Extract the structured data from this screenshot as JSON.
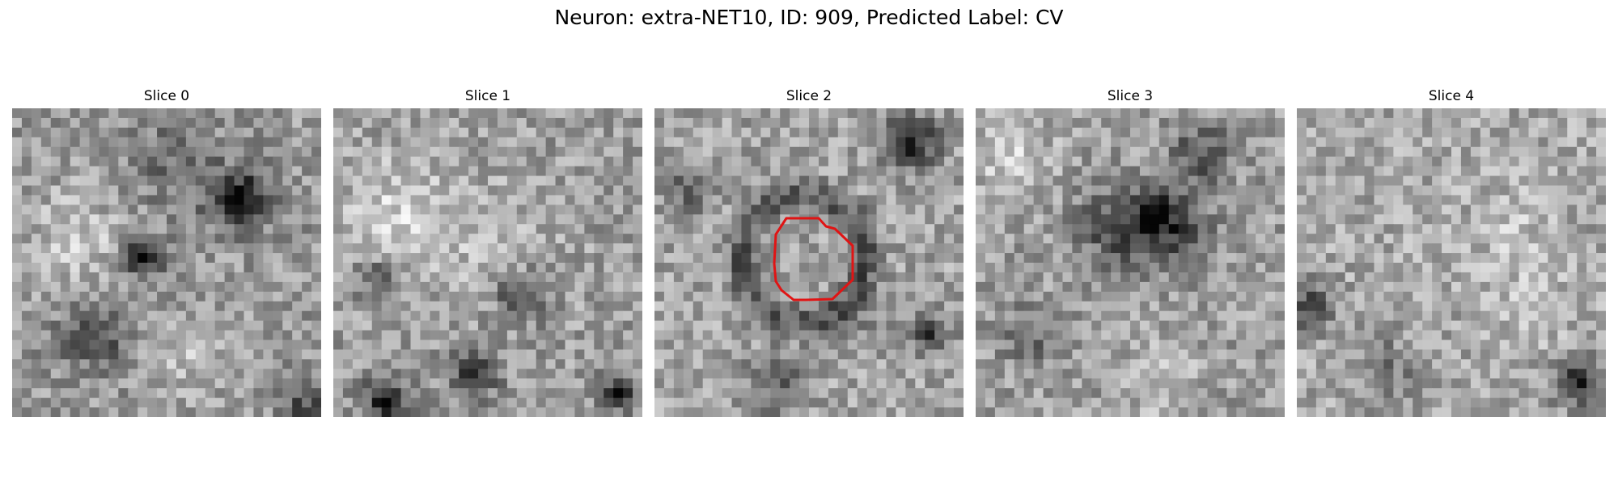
{
  "figure": {
    "title": "Neuron: extra-NET10, ID: 909, Predicted Label: CV"
  },
  "panels": [
    {
      "title": "Slice 0"
    },
    {
      "title": "Slice 1"
    },
    {
      "title": "Slice 2"
    },
    {
      "title": "Slice 3"
    },
    {
      "title": "Slice 4"
    }
  ],
  "colors": {
    "background": "#ffffff",
    "colormap": "gray",
    "contour": "#e01414"
  }
}
